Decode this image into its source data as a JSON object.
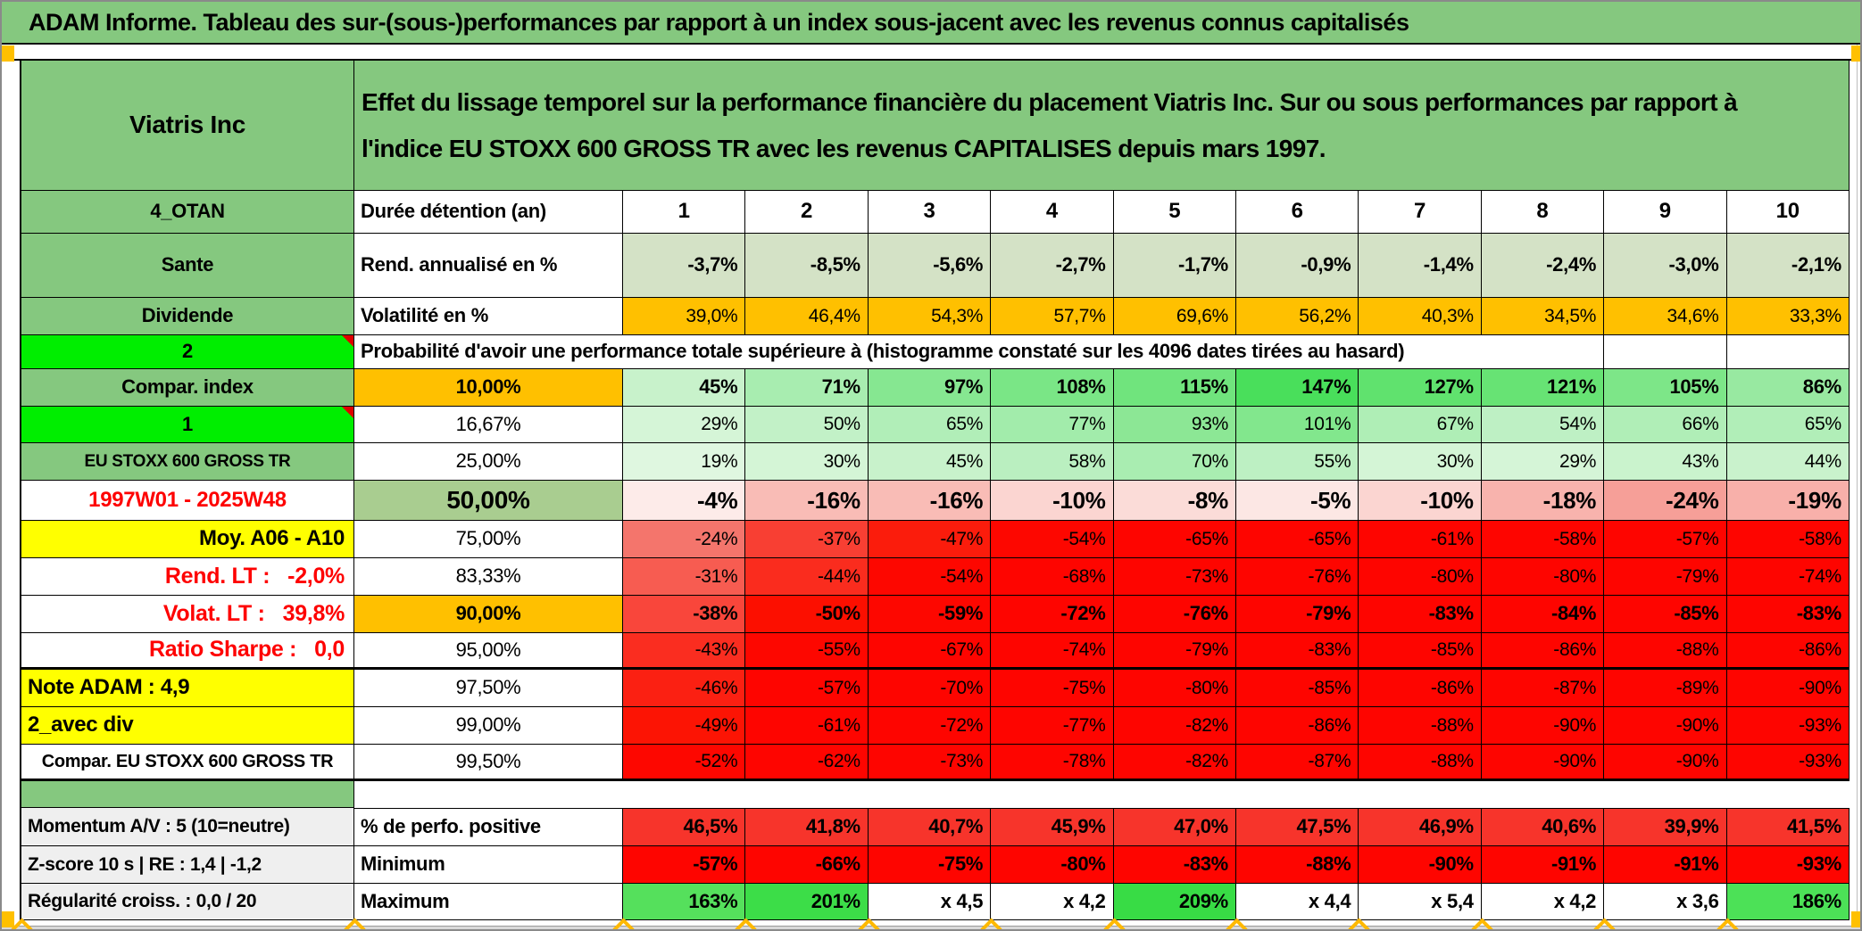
{
  "title": "ADAM Informe. Tableau des sur-(sous-)performances par rapport à un index sous-jacent avec les revenus connus capitalisés",
  "accent_colors": {
    "sheet_green": "#85c87f",
    "lime": "#00ee00",
    "orange": "#ffc000",
    "yellow": "#ffff00",
    "full_red": "#fe0500",
    "red_text": "#fe0000",
    "marker_orange": "#ffb900"
  },
  "table": {
    "columns": [
      "1",
      "2",
      "3",
      "4",
      "5",
      "6",
      "7",
      "8",
      "9",
      "10"
    ],
    "rows": [
      {
        "kind": "title_block",
        "label": {
          "text": "Viatris Inc",
          "bg": "#85c87f",
          "size": 28,
          "align": "center",
          "bold": true
        },
        "span": {
          "text": "Effet du lissage temporel sur la performance financière du placement Viatris Inc. Sur ou sous performances par rapport à l'indice EU STOXX 600 GROSS TR avec les revenus CAPITALISES depuis mars 1997.",
          "bg": "#85c87f",
          "size": 28,
          "bold": true
        }
      },
      {
        "kind": "row",
        "label": {
          "text": "4_OTAN",
          "bg": "#85c87f",
          "size": 22,
          "align": "center",
          "bold": true
        },
        "col2": {
          "text": "Durée détention (an)",
          "bg": "#ffffff",
          "size": 22,
          "align": "left",
          "bold": true
        },
        "cells": {
          "values": [
            "1",
            "2",
            "3",
            "4",
            "5",
            "6",
            "7",
            "8",
            "9",
            "10"
          ],
          "bg": "#ffffff",
          "bold": true,
          "size": 24,
          "align": "center"
        }
      },
      {
        "kind": "row",
        "label": {
          "text": "Sante",
          "bg": "#85c87f",
          "size": 22,
          "align": "center",
          "bold": true
        },
        "col2": {
          "text": "Rend. annualisé en %",
          "bg": "#ffffff",
          "size": 22,
          "align": "left",
          "bold": true
        },
        "cells": {
          "values": [
            "-3,7%",
            "-8,5%",
            "-5,6%",
            "-2,7%",
            "-1,7%",
            "-0,9%",
            "-1,4%",
            "-2,4%",
            "-3,0%",
            "-2,1%"
          ],
          "bg": "#d4e2c6",
          "bold": true,
          "size": 22
        }
      },
      {
        "kind": "row",
        "label": {
          "text": "Dividende",
          "bg": "#85c87f",
          "size": 22,
          "align": "center",
          "bold": true
        },
        "col2": {
          "text": "Volatilité en %",
          "bg": "#ffffff",
          "size": 22,
          "align": "left",
          "bold": true
        },
        "cells": {
          "values": [
            "39,0%",
            "46,4%",
            "54,3%",
            "57,7%",
            "69,6%",
            "56,2%",
            "40,3%",
            "34,5%",
            "34,6%",
            "33,3%"
          ],
          "bg": "#ffc000",
          "bold": false,
          "size": 21
        }
      },
      {
        "kind": "span_row",
        "label": {
          "text": "2",
          "bg": "#00ee00",
          "size": 22,
          "align": "center",
          "bold": true,
          "comment": true
        },
        "span": {
          "text": "Probabilité d'avoir une performance totale supérieure à (histogramme constaté sur les 4096 dates tirées au hasard)",
          "bg": "#ffffff",
          "size": 22,
          "bold": true
        },
        "empty_bg": "#ffffff"
      },
      {
        "kind": "row",
        "label": {
          "text": "Compar. index",
          "bg": "#85c87f",
          "size": 22,
          "align": "center",
          "bold": true
        },
        "col2": {
          "text": "10,00%",
          "bg": "#ffc000",
          "size": 22,
          "align": "center",
          "bold": true
        },
        "cells": {
          "values": [
            "45%",
            "71%",
            "97%",
            "108%",
            "115%",
            "147%",
            "127%",
            "121%",
            "105%",
            "86%"
          ],
          "bg": [
            "#c8f2cb",
            "#a8edb0",
            "#86e791",
            "#7ae686",
            "#70e47d",
            "#49df5b",
            "#60e26e",
            "#67e374",
            "#7de688",
            "#98e9a1"
          ],
          "bold": true,
          "size": 22
        }
      },
      {
        "kind": "row",
        "label": {
          "text": "1",
          "bg": "#00ee00",
          "size": 22,
          "align": "center",
          "bold": true,
          "comment": true
        },
        "col2": {
          "text": "16,67%",
          "bg": "#ffffff",
          "size": 22,
          "align": "center",
          "bold": false
        },
        "cells": {
          "values": [
            "29%",
            "50%",
            "65%",
            "77%",
            "93%",
            "101%",
            "67%",
            "54%",
            "66%",
            "65%"
          ],
          "bg": [
            "#d5f5d7",
            "#c2f1c7",
            "#b1eeb8",
            "#a2ecab",
            "#8ce795",
            "#82e78d",
            "#afeeb6",
            "#bef0c4",
            "#b0eeb7",
            "#b1eeb8"
          ],
          "bold": false,
          "size": 21
        }
      },
      {
        "kind": "row",
        "label": {
          "text": "EU STOXX 600 GROSS TR",
          "bg": "#85c87f",
          "size": 19,
          "align": "center",
          "bold": true
        },
        "col2": {
          "text": "25,00%",
          "bg": "#ffffff",
          "size": 22,
          "align": "center",
          "bold": false
        },
        "cells": {
          "values": [
            "19%",
            "30%",
            "45%",
            "58%",
            "70%",
            "55%",
            "30%",
            "29%",
            "43%",
            "44%"
          ],
          "bg": [
            "#dff7e0",
            "#d4f5d6",
            "#c8f2cb",
            "#baefc0",
            "#a9edb1",
            "#bdf0c3",
            "#d4f5d6",
            "#d5f5d7",
            "#caf3cd",
            "#c9f2cc"
          ],
          "bold": false,
          "size": 21
        }
      },
      {
        "kind": "row",
        "label": {
          "text": "1997W01 - 2025W48",
          "bg": "#ffffff",
          "color": "#fe0000",
          "size": 24,
          "align": "center",
          "bold": true
        },
        "col2": {
          "text": "50,00%",
          "bg": "#a9cd90",
          "size": 28,
          "align": "center",
          "bold": true
        },
        "cells": {
          "values": [
            "-4%",
            "-16%",
            "-16%",
            "-10%",
            "-8%",
            "-5%",
            "-10%",
            "-18%",
            "-24%",
            "-19%"
          ],
          "bg": [
            "#fdebe9",
            "#f9bcb6",
            "#f9bcb6",
            "#fbd5d1",
            "#fbdcd8",
            "#fce7e4",
            "#fbd5d1",
            "#f8b3ad",
            "#f69f98",
            "#f8b0aa"
          ],
          "bold": true,
          "size": 26
        }
      },
      {
        "kind": "row",
        "label": {
          "text": "Moy. A06 - A10",
          "bg": "#ffff00",
          "size": 24,
          "align": "right",
          "bold": true
        },
        "col2": {
          "text": "75,00%",
          "bg": "#ffffff",
          "size": 22,
          "align": "center",
          "bold": false
        },
        "cells": {
          "values": [
            "-24%",
            "-37%",
            "-47%",
            "-54%",
            "-65%",
            "-65%",
            "-61%",
            "-58%",
            "-57%",
            "-58%"
          ],
          "bg": [
            "#f4756c",
            "#f83f33",
            "#fb1c0c",
            "#fd0700",
            "#fe0500",
            "#fe0500",
            "#fe0500",
            "#fe0500",
            "#fe0500",
            "#fe0500"
          ],
          "bold": false,
          "size": 21
        }
      },
      {
        "kind": "row",
        "label": {
          "text": "Rend. LT :   -2,0%",
          "bg": "#ffffff",
          "color": "#fe0000",
          "size": 25,
          "align": "right",
          "bold": true
        },
        "col2": {
          "text": "83,33%",
          "bg": "#ffffff",
          "size": 22,
          "align": "center",
          "bold": false
        },
        "cells": {
          "values": [
            "-31%",
            "-44%",
            "-54%",
            "-68%",
            "-73%",
            "-76%",
            "-80%",
            "-80%",
            "-79%",
            "-74%"
          ],
          "bg": [
            "#f75c51",
            "#fa2c1e",
            "#fd0700",
            "#fe0500",
            "#fe0500",
            "#fe0500",
            "#fe0500",
            "#fe0500",
            "#fe0500",
            "#fe0500"
          ],
          "bold": false,
          "size": 21
        }
      },
      {
        "kind": "row",
        "label": {
          "text": "Volat. LT :   39,8%",
          "bg": "#ffffff",
          "color": "#fe0000",
          "size": 25,
          "align": "right",
          "bold": true
        },
        "col2": {
          "text": "90,00%",
          "bg": "#ffc000",
          "size": 22,
          "align": "center",
          "bold": true
        },
        "cells": {
          "values": [
            "-38%",
            "-50%",
            "-59%",
            "-72%",
            "-76%",
            "-79%",
            "-83%",
            "-84%",
            "-85%",
            "-83%"
          ],
          "bg": [
            "#f9463b",
            "#fc0f00",
            "#fd0700",
            "#fe0500",
            "#fe0500",
            "#fe0500",
            "#fe0500",
            "#fe0500",
            "#fe0500",
            "#fe0500"
          ],
          "bold": true,
          "size": 22
        }
      },
      {
        "kind": "row",
        "thick_bottom": true,
        "label": {
          "text": "Ratio Sharpe :   0,0",
          "bg": "#ffffff",
          "color": "#fe0000",
          "size": 25,
          "align": "right",
          "bold": true
        },
        "col2": {
          "text": "95,00%",
          "bg": "#ffffff",
          "size": 22,
          "align": "center",
          "bold": false
        },
        "cells": {
          "values": [
            "-43%",
            "-55%",
            "-67%",
            "-74%",
            "-79%",
            "-83%",
            "-85%",
            "-86%",
            "-88%",
            "-86%"
          ],
          "bg": [
            "#fa2d20",
            "#fd0700",
            "#fe0500",
            "#fe0500",
            "#fe0500",
            "#fe0500",
            "#fe0500",
            "#fe0500",
            "#fe0500",
            "#fe0500"
          ],
          "bold": false,
          "size": 21
        }
      },
      {
        "kind": "row",
        "label": {
          "text": "Note ADAM : 4,9",
          "bg": "#ffff00",
          "size": 24,
          "align": "left",
          "bold": true
        },
        "col2": {
          "text": "97,50%",
          "bg": "#ffffff",
          "size": 22,
          "align": "center",
          "bold": false
        },
        "cells": {
          "values": [
            "-46%",
            "-57%",
            "-70%",
            "-75%",
            "-80%",
            "-85%",
            "-86%",
            "-87%",
            "-89%",
            "-90%"
          ],
          "bg": [
            "#fb2012",
            "#fe0500",
            "#fe0500",
            "#fe0500",
            "#fe0500",
            "#fe0500",
            "#fe0500",
            "#fe0500",
            "#fe0500",
            "#fe0500"
          ],
          "bold": false,
          "size": 21
        }
      },
      {
        "kind": "row",
        "label": {
          "text": "2_avec div",
          "bg": "#ffff00",
          "size": 24,
          "align": "left",
          "bold": true
        },
        "col2": {
          "text": "99,00%",
          "bg": "#ffffff",
          "size": 22,
          "align": "center",
          "bold": false
        },
        "cells": {
          "values": [
            "-49%",
            "-61%",
            "-72%",
            "-77%",
            "-82%",
            "-86%",
            "-88%",
            "-90%",
            "-90%",
            "-93%"
          ],
          "bg": [
            "#fc1404",
            "#fe0500",
            "#fe0500",
            "#fe0500",
            "#fe0500",
            "#fe0500",
            "#fe0500",
            "#fe0500",
            "#fe0500",
            "#fe0500"
          ],
          "bold": false,
          "size": 21
        }
      },
      {
        "kind": "row",
        "thick_bottom": true,
        "label": {
          "text": "Compar. EU STOXX 600 GROSS TR",
          "bg": "#ffffff",
          "size": 20,
          "align": "center",
          "bold": true
        },
        "col2": {
          "text": "99,50%",
          "bg": "#ffffff",
          "size": 22,
          "align": "center",
          "bold": false
        },
        "cells": {
          "values": [
            "-52%",
            "-62%",
            "-73%",
            "-78%",
            "-82%",
            "-87%",
            "-88%",
            "-90%",
            "-90%",
            "-93%"
          ],
          "bg": [
            "#fd0700",
            "#fe0500",
            "#fe0500",
            "#fe0500",
            "#fe0500",
            "#fe0500",
            "#fe0500",
            "#fe0500",
            "#fe0500",
            "#fe0500"
          ],
          "bold": false,
          "size": 21
        }
      },
      {
        "kind": "gap",
        "label": {
          "text": "",
          "bg": "#85c87f"
        }
      },
      {
        "kind": "row",
        "top_border": true,
        "label": {
          "text": "Momentum A/V : 5 (10=neutre)",
          "bg": "#efefef",
          "size": 21,
          "align": "left",
          "bold": true
        },
        "col2": {
          "text": "% de perfo. positive",
          "bg": "#ffffff",
          "size": 22,
          "align": "left",
          "bold": true
        },
        "cells": {
          "values": [
            "46,5%",
            "41,8%",
            "40,7%",
            "45,9%",
            "47,0%",
            "47,5%",
            "46,9%",
            "40,6%",
            "39,9%",
            "41,5%"
          ],
          "bg": "#f7342b",
          "bold": true,
          "size": 22
        }
      },
      {
        "kind": "row",
        "label": {
          "text": "Z-score 10 s | RE : 1,4 | -1,2",
          "bg": "#efefef",
          "size": 21,
          "align": "left",
          "bold": true
        },
        "col2": {
          "text": "Minimum",
          "bg": "#ffffff",
          "size": 22,
          "align": "left",
          "bold": true
        },
        "cells": {
          "values": [
            "-57%",
            "-66%",
            "-75%",
            "-80%",
            "-83%",
            "-88%",
            "-90%",
            "-91%",
            "-91%",
            "-93%"
          ],
          "bg": "#fe0500",
          "bold": true,
          "size": 22
        }
      },
      {
        "kind": "row",
        "label": {
          "text": "Régularité croiss. : 0,0 / 20",
          "bg": "#efefef",
          "size": 21,
          "align": "left",
          "bold": true
        },
        "col2": {
          "text": "Maximum",
          "bg": "#ffffff",
          "size": 22,
          "align": "left",
          "bold": true
        },
        "cells": {
          "values": [
            "163%",
            "201%",
            "x 4,5",
            "x 4,2",
            "209%",
            "x 4,4",
            "x 5,4",
            "x 4,2",
            "x 3,6",
            "186%"
          ],
          "bg": [
            "#55e05c",
            "#3cdd48",
            "#ffffff",
            "#ffffff",
            "#38dc45",
            "#ffffff",
            "#ffffff",
            "#ffffff",
            "#ffffff",
            "#4ce157"
          ],
          "bold": true,
          "size": 22
        }
      }
    ]
  }
}
